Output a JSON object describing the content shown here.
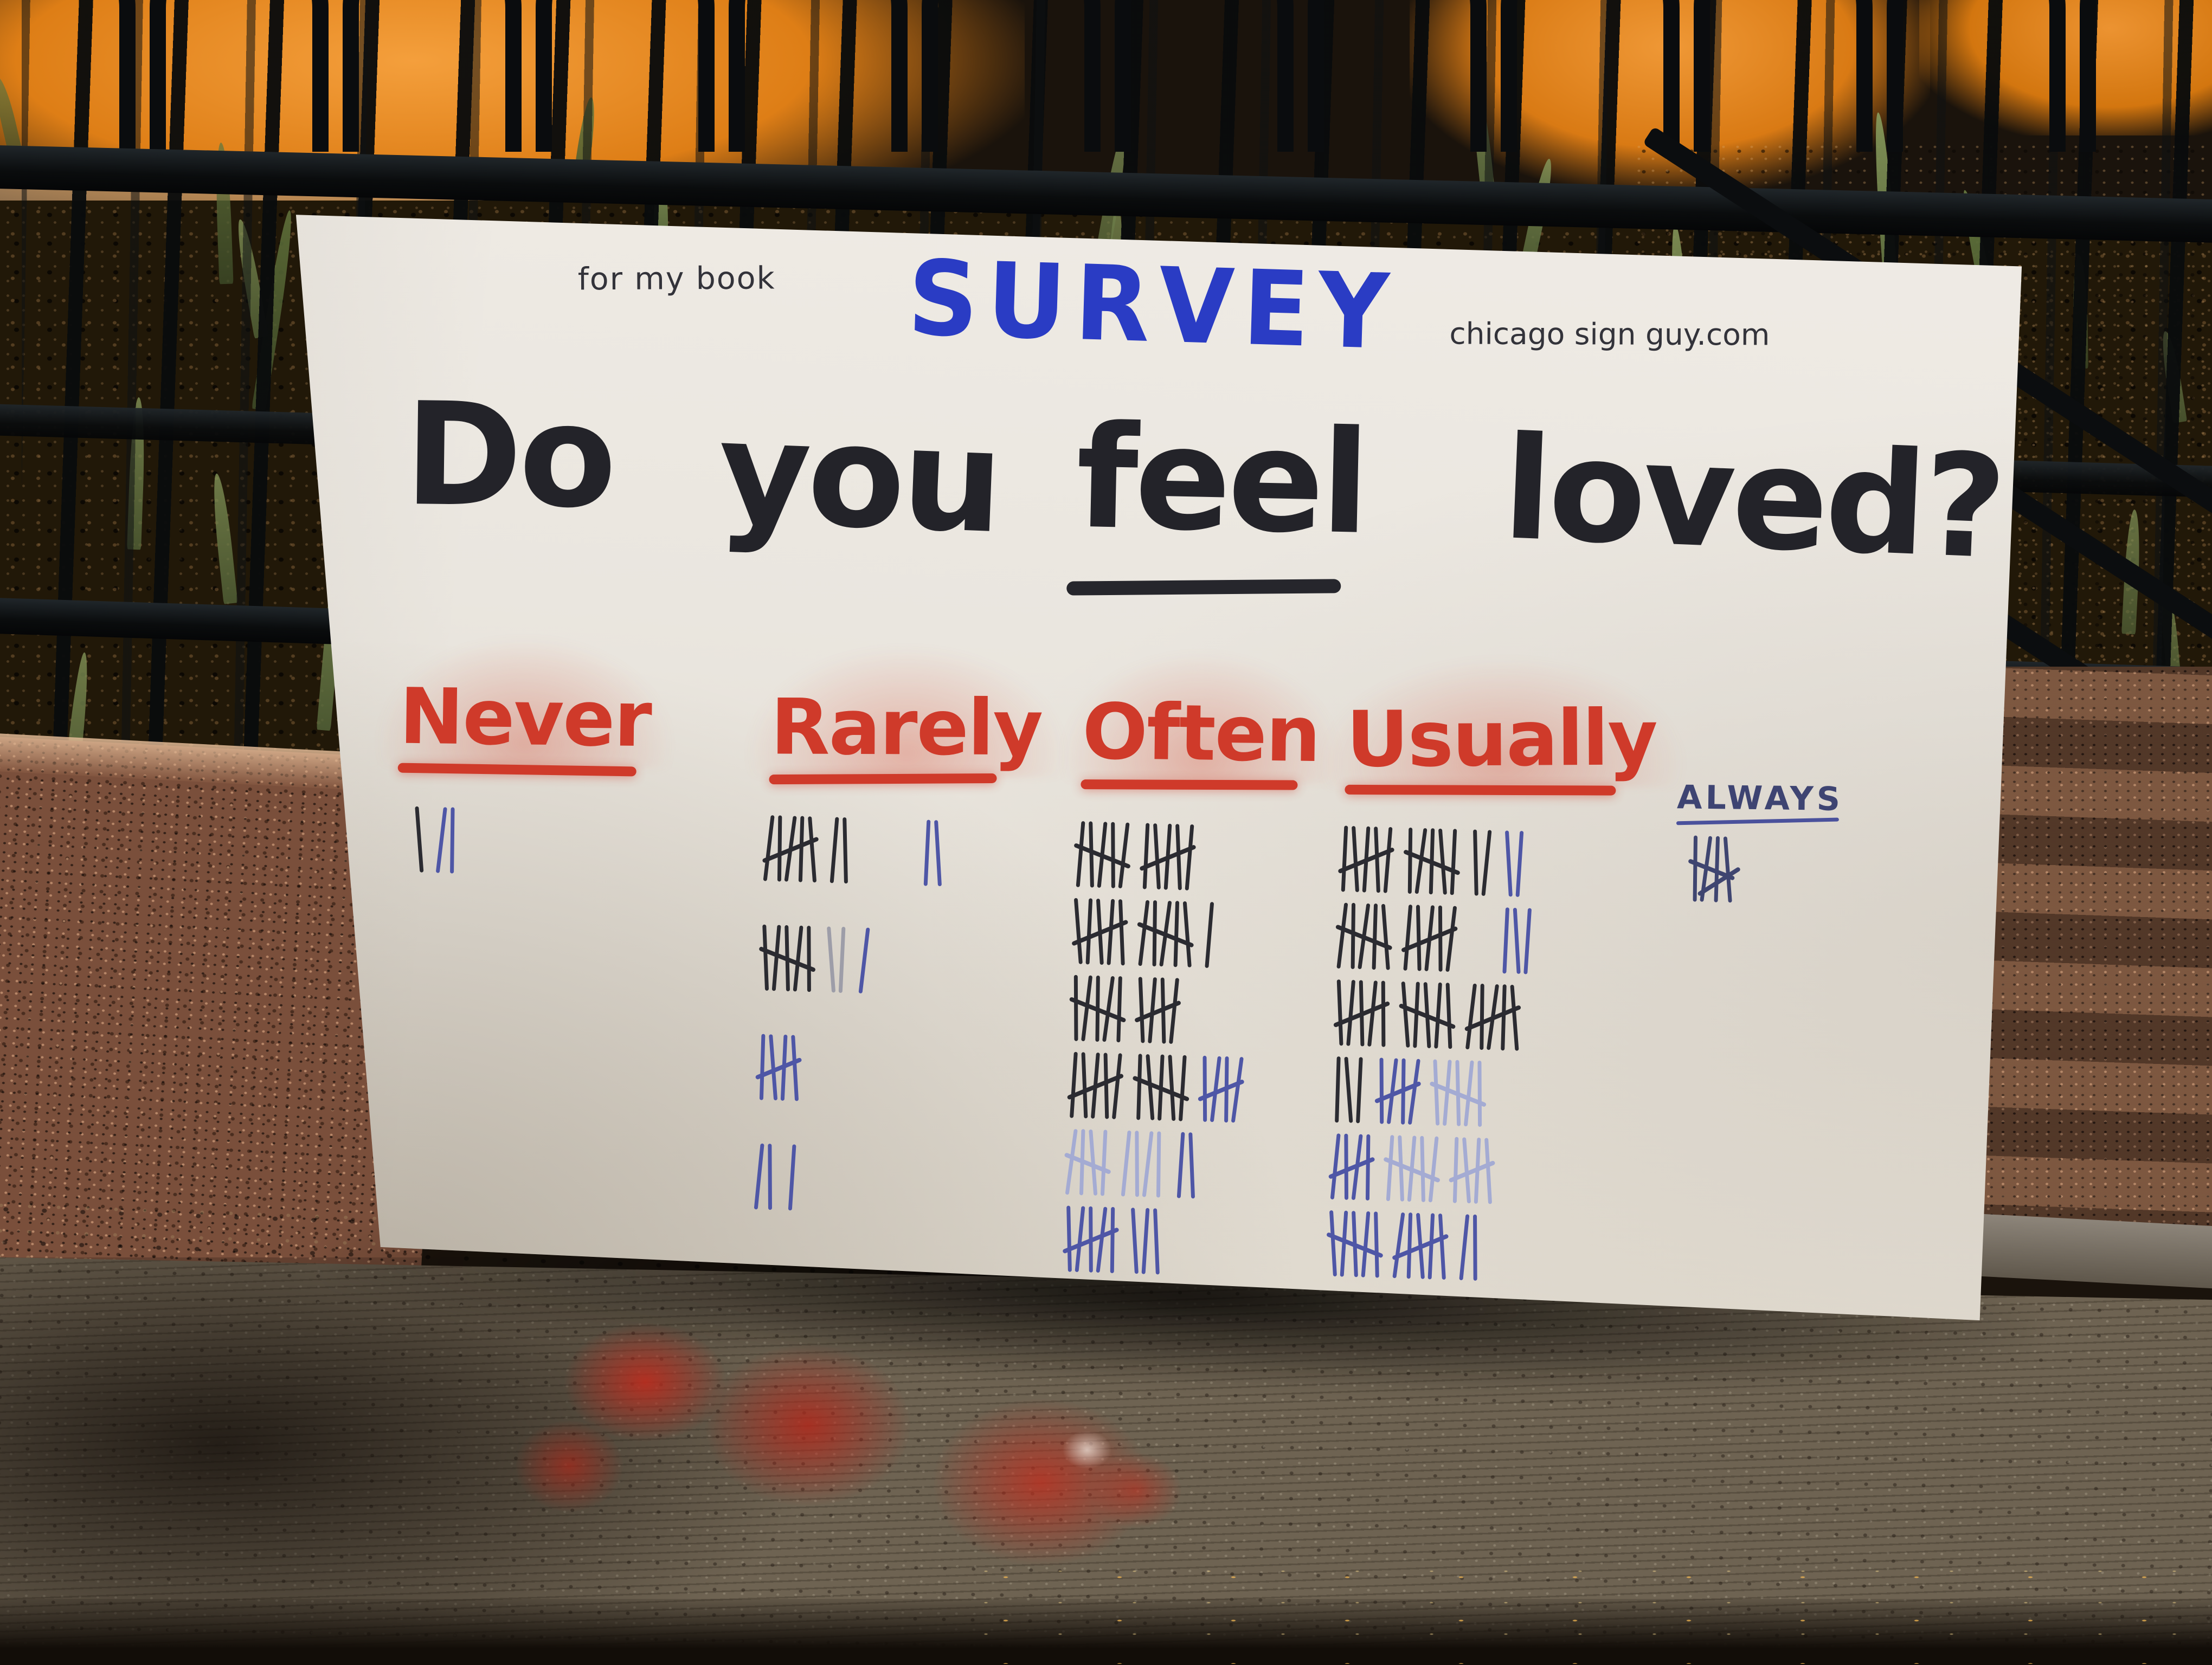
{
  "colors": {
    "board_white": "#e9e5dd",
    "marker_black": "#26262c",
    "marker_red": "#cf3a2a",
    "marker_blue": "#2a3cc4",
    "pen_blue": "#4e56a6",
    "pen_blue_faint": "#a4abd3",
    "orange_wall": "#de7e16",
    "fence_black": "#0a0c0e",
    "granite": "#7a4f3b",
    "sidewalk": "#6e6352",
    "paint_red": "#b52c1e"
  },
  "board": {
    "note": "for my book",
    "title": "SURVEY",
    "website": "chicago sign guy.com",
    "question": {
      "words": [
        "Do",
        "you",
        "feel",
        "loved?"
      ],
      "underlined_word": "feel"
    },
    "columns": [
      {
        "id": "never",
        "label": "Never",
        "ink": "red-marker",
        "tally_total": 3,
        "tally_rows": [
          [
            {
              "n": 1,
              "c": "black"
            },
            {
              "n": 2,
              "c": "blue"
            }
          ]
        ]
      },
      {
        "id": "rarely",
        "label": "Rarely",
        "ink": "red-marker",
        "tally_total": 24,
        "tally_rows": [
          [
            {
              "n": 5,
              "x": 1,
              "c": "black"
            },
            {
              "n": 2,
              "c": "black"
            },
            {
              "n": 2,
              "c": "blue",
              "gap": 110
            }
          ],
          [
            {
              "n": 5,
              "x": 1,
              "c": "black"
            },
            {
              "n": 2,
              "c": "gray"
            },
            {
              "n": 1,
              "c": "blue"
            }
          ],
          [
            {
              "n": 4,
              "x": 1,
              "c": "blue"
            }
          ],
          [
            {
              "n": 2,
              "c": "blue"
            },
            {
              "n": 1,
              "c": "blue"
            }
          ]
        ]
      },
      {
        "id": "often",
        "label": "Often",
        "ink": "red-marker",
        "tally_total": 62,
        "tally_rows": [
          [
            {
              "n": 5,
              "x": 1,
              "c": "black"
            },
            {
              "n": 5,
              "x": 1,
              "c": "black"
            }
          ],
          [
            {
              "n": 5,
              "x": 1,
              "c": "black"
            },
            {
              "n": 5,
              "x": 1,
              "c": "black"
            },
            {
              "n": 1,
              "c": "black"
            }
          ],
          [
            {
              "n": 5,
              "x": 1,
              "c": "black"
            },
            {
              "n": 4,
              "x": 1,
              "c": "black"
            }
          ],
          [
            {
              "n": 5,
              "x": 1,
              "c": "black"
            },
            {
              "n": 5,
              "x": 1,
              "c": "black"
            },
            {
              "n": 4,
              "x": 1,
              "c": "blue"
            }
          ],
          [
            {
              "n": 4,
              "x": 1,
              "c": "faint"
            },
            {
              "n": 4,
              "c": "faint"
            },
            {
              "n": 2,
              "c": "blue"
            }
          ],
          [
            {
              "n": 5,
              "x": 1,
              "c": "blue"
            },
            {
              "n": 3,
              "c": "blue"
            }
          ]
        ]
      },
      {
        "id": "usually",
        "label": "Usually",
        "ink": "red-marker",
        "tally_total": 79,
        "tally_rows": [
          [
            {
              "n": 5,
              "x": 1,
              "c": "black"
            },
            {
              "n": 5,
              "x": 1,
              "c": "black"
            },
            {
              "n": 2,
              "c": "black"
            },
            {
              "n": 2,
              "c": "blue"
            }
          ],
          [
            {
              "n": 5,
              "x": 1,
              "c": "black"
            },
            {
              "n": 5,
              "x": 1,
              "c": "black"
            },
            {
              "n": 3,
              "c": "blue",
              "gap": 60
            }
          ],
          [
            {
              "n": 5,
              "x": 1,
              "c": "black"
            },
            {
              "n": 5,
              "x": 1,
              "c": "black"
            },
            {
              "n": 5,
              "x": 1,
              "c": "black"
            }
          ],
          [
            {
              "n": 3,
              "c": "black"
            },
            {
              "n": 4,
              "x": 1,
              "c": "blue"
            },
            {
              "n": 5,
              "x": 1,
              "c": "faint"
            }
          ],
          [
            {
              "n": 4,
              "x": 1,
              "c": "blue"
            },
            {
              "n": 5,
              "x": 1,
              "c": "faint"
            },
            {
              "n": 4,
              "x": 1,
              "c": "faint"
            }
          ],
          [
            {
              "n": 5,
              "x": 1,
              "c": "blue"
            },
            {
              "n": 5,
              "x": 1,
              "c": "blue"
            },
            {
              "n": 2,
              "c": "blue"
            }
          ]
        ]
      },
      {
        "id": "always",
        "label": "ALWAYS",
        "ink": "blue-pen",
        "tally_total": 8,
        "tally_rows": [
          [
            {
              "n": 4,
              "x": 1,
              "dbl": 1,
              "c": "pen"
            }
          ]
        ]
      }
    ]
  },
  "chart_data": {
    "type": "bar",
    "title": "Do you feel loved?",
    "categories": [
      "Never",
      "Rarely",
      "Often",
      "Usually",
      "Always"
    ],
    "values": [
      3,
      24,
      62,
      79,
      8
    ],
    "value_note": "approximate counts of handwritten tally marks under each answer column",
    "representation": "tally marks"
  }
}
